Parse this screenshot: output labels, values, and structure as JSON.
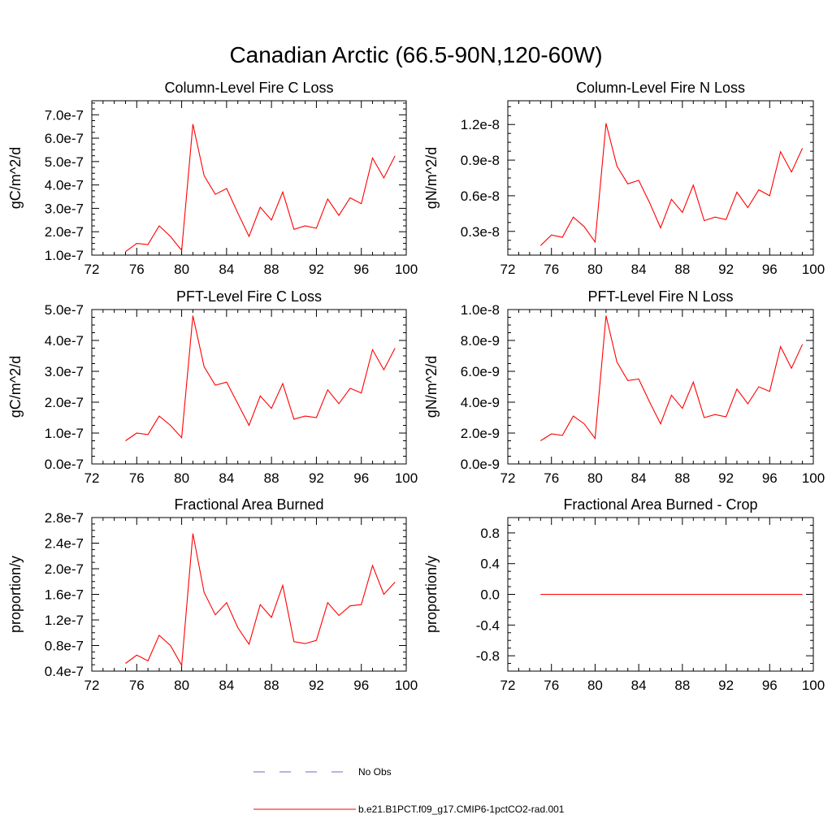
{
  "figure": {
    "title": "Canadian Arctic (66.5-90N,120-60W)"
  },
  "chart_data": [
    {
      "type": "line",
      "title": "Column-Level Fire C Loss",
      "ylabel": "gC/m^2/d",
      "xlim": [
        72,
        100
      ],
      "ylim": [
        1e-07,
        7.6e-07
      ],
      "xticks": [
        72,
        76,
        80,
        84,
        88,
        92,
        96,
        100
      ],
      "xticklabels": [
        "72",
        "76",
        "80",
        "84",
        "88",
        "92",
        "96",
        "100"
      ],
      "yticks": [
        1e-07,
        2e-07,
        3e-07,
        4e-07,
        5e-07,
        6e-07,
        7e-07
      ],
      "yticklabels": [
        "1.0e-7",
        "2.0e-7",
        "3.0e-7",
        "4.0e-7",
        "5.0e-7",
        "6.0e-7",
        "7.0e-7"
      ],
      "x": [
        75,
        76,
        77,
        78,
        79,
        80,
        81,
        82,
        83,
        84,
        85,
        86,
        87,
        88,
        89,
        90,
        91,
        92,
        93,
        94,
        95,
        96,
        97,
        98,
        99
      ],
      "series": [
        {
          "name": "b.e21.B1PCT.f09_g17.CMIP6-1pctCO2-rad.001",
          "color": "#ff0000",
          "values": [
            1.15e-07,
            1.5e-07,
            1.45e-07,
            2.25e-07,
            1.8e-07,
            1.2e-07,
            6.6e-07,
            4.4e-07,
            3.6e-07,
            3.85e-07,
            2.8e-07,
            1.8e-07,
            3.05e-07,
            2.5e-07,
            3.7e-07,
            2.1e-07,
            2.25e-07,
            2.15e-07,
            3.4e-07,
            2.7e-07,
            3.45e-07,
            3.2e-07,
            5.15e-07,
            4.3e-07,
            5.25e-07
          ]
        }
      ]
    },
    {
      "type": "line",
      "title": "Column-Level Fire N Loss",
      "ylabel": "gN/m^2/d",
      "xlim": [
        72,
        100
      ],
      "ylim": [
        1e-09,
        1.4e-08
      ],
      "xticks": [
        72,
        76,
        80,
        84,
        88,
        92,
        96,
        100
      ],
      "xticklabels": [
        "72",
        "76",
        "80",
        "84",
        "88",
        "92",
        "96",
        "100"
      ],
      "yticks": [
        3e-09,
        6e-09,
        9e-09,
        1.2e-08
      ],
      "yticklabels": [
        "0.3e-8",
        "0.6e-8",
        "0.9e-8",
        "1.2e-8"
      ],
      "x": [
        75,
        76,
        77,
        78,
        79,
        80,
        81,
        82,
        83,
        84,
        85,
        86,
        87,
        88,
        89,
        90,
        91,
        92,
        93,
        94,
        95,
        96,
        97,
        98,
        99
      ],
      "series": [
        {
          "name": "b.e21.B1PCT.f09_g17.CMIP6-1pctCO2-rad.001",
          "color": "#ff0000",
          "values": [
            1.8e-09,
            2.7e-09,
            2.5e-09,
            4.2e-09,
            3.4e-09,
            2.1e-09,
            1.21e-08,
            8.5e-09,
            7e-09,
            7.3e-09,
            5.4e-09,
            3.3e-09,
            5.7e-09,
            4.6e-09,
            6.9e-09,
            3.9e-09,
            4.2e-09,
            4e-09,
            6.3e-09,
            5e-09,
            6.5e-09,
            6e-09,
            9.7e-09,
            8e-09,
            1e-08
          ]
        }
      ]
    },
    {
      "type": "line",
      "title": "PFT-Level Fire C Loss",
      "ylabel": "gC/m^2/d",
      "xlim": [
        72,
        100
      ],
      "ylim": [
        0.0,
        5e-07
      ],
      "xticks": [
        72,
        76,
        80,
        84,
        88,
        92,
        96,
        100
      ],
      "xticklabels": [
        "72",
        "76",
        "80",
        "84",
        "88",
        "92",
        "96",
        "100"
      ],
      "yticks": [
        0.0,
        1e-07,
        2e-07,
        3e-07,
        4e-07,
        5e-07
      ],
      "yticklabels": [
        "0.0e-7",
        "1.0e-7",
        "2.0e-7",
        "3.0e-7",
        "4.0e-7",
        "5.0e-7"
      ],
      "x": [
        75,
        76,
        77,
        78,
        79,
        80,
        81,
        82,
        83,
        84,
        85,
        86,
        87,
        88,
        89,
        90,
        91,
        92,
        93,
        94,
        95,
        96,
        97,
        98,
        99
      ],
      "series": [
        {
          "name": "b.e21.B1PCT.f09_g17.CMIP6-1pctCO2-rad.001",
          "color": "#ff0000",
          "values": [
            7.5e-08,
            1e-07,
            9.5e-08,
            1.55e-07,
            1.25e-07,
            8.5e-08,
            4.8e-07,
            3.15e-07,
            2.55e-07,
            2.65e-07,
            1.95e-07,
            1.25e-07,
            2.2e-07,
            1.8e-07,
            2.6e-07,
            1.45e-07,
            1.55e-07,
            1.5e-07,
            2.4e-07,
            1.95e-07,
            2.45e-07,
            2.3e-07,
            3.7e-07,
            3.05e-07,
            3.75e-07
          ]
        }
      ]
    },
    {
      "type": "line",
      "title": "PFT-Level Fire N Loss",
      "ylabel": "gN/m^2/d",
      "xlim": [
        72,
        100
      ],
      "ylim": [
        0.0,
        1e-08
      ],
      "xticks": [
        72,
        76,
        80,
        84,
        88,
        92,
        96,
        100
      ],
      "xticklabels": [
        "72",
        "76",
        "80",
        "84",
        "88",
        "92",
        "96",
        "100"
      ],
      "yticks": [
        0.0,
        2e-09,
        4e-09,
        6e-09,
        8e-09,
        1e-08
      ],
      "yticklabels": [
        "0.0e-9",
        "2.0e-9",
        "4.0e-9",
        "6.0e-9",
        "8.0e-9",
        "1.0e-8"
      ],
      "x": [
        75,
        76,
        77,
        78,
        79,
        80,
        81,
        82,
        83,
        84,
        85,
        86,
        87,
        88,
        89,
        90,
        91,
        92,
        93,
        94,
        95,
        96,
        97,
        98,
        99
      ],
      "series": [
        {
          "name": "b.e21.B1PCT.f09_g17.CMIP6-1pctCO2-rad.001",
          "color": "#ff0000",
          "values": [
            1.5e-09,
            1.95e-09,
            1.85e-09,
            3.1e-09,
            2.6e-09,
            1.65e-09,
            9.6e-09,
            6.6e-09,
            5.4e-09,
            5.5e-09,
            4e-09,
            2.6e-09,
            4.45e-09,
            3.6e-09,
            5.3e-09,
            3e-09,
            3.2e-09,
            3.05e-09,
            4.85e-09,
            3.9e-09,
            5e-09,
            4.7e-09,
            7.6e-09,
            6.2e-09,
            7.75e-09
          ]
        }
      ]
    },
    {
      "type": "line",
      "title": "Fractional Area Burned",
      "ylabel": "proportion/y",
      "xlim": [
        72,
        100
      ],
      "ylim": [
        4e-08,
        2.8e-07
      ],
      "xticks": [
        72,
        76,
        80,
        84,
        88,
        92,
        96,
        100
      ],
      "xticklabels": [
        "72",
        "76",
        "80",
        "84",
        "88",
        "92",
        "96",
        "100"
      ],
      "yticks": [
        4e-08,
        8e-08,
        1.2e-07,
        1.6e-07,
        2e-07,
        2.4e-07,
        2.8e-07
      ],
      "yticklabels": [
        "0.4e-7",
        "0.8e-7",
        "1.2e-7",
        "1.6e-7",
        "2.0e-7",
        "2.4e-7",
        "2.8e-7"
      ],
      "x": [
        75,
        76,
        77,
        78,
        79,
        80,
        81,
        82,
        83,
        84,
        85,
        86,
        87,
        88,
        89,
        90,
        91,
        92,
        93,
        94,
        95,
        96,
        97,
        98,
        99
      ],
      "series": [
        {
          "name": "b.e21.B1PCT.f09_g17.CMIP6-1pctCO2-rad.001",
          "color": "#ff0000",
          "values": [
            5.2e-08,
            6.5e-08,
            5.6e-08,
            9.6e-08,
            8e-08,
            4.9e-08,
            2.55e-07,
            1.63e-07,
            1.28e-07,
            1.47e-07,
            1.08e-07,
            8.2e-08,
            1.44e-07,
            1.24e-07,
            1.74e-07,
            8.6e-08,
            8.3e-08,
            8.8e-08,
            1.47e-07,
            1.27e-07,
            1.42e-07,
            1.44e-07,
            2.05e-07,
            1.6e-07,
            1.79e-07
          ]
        }
      ]
    },
    {
      "type": "line",
      "title": "Fractional Area Burned - Crop",
      "ylabel": "proportion/y",
      "xlim": [
        72,
        100
      ],
      "ylim": [
        -1.0,
        1.0
      ],
      "xticks": [
        72,
        76,
        80,
        84,
        88,
        92,
        96,
        100
      ],
      "xticklabels": [
        "72",
        "76",
        "80",
        "84",
        "88",
        "92",
        "96",
        "100"
      ],
      "yticks": [
        -0.8,
        -0.4,
        0.0,
        0.4,
        0.8
      ],
      "yticklabels": [
        "-0.8",
        "-0.4",
        "0.0",
        "0.4",
        "0.8"
      ],
      "x": [
        75,
        76,
        77,
        78,
        79,
        80,
        81,
        82,
        83,
        84,
        85,
        86,
        87,
        88,
        89,
        90,
        91,
        92,
        93,
        94,
        95,
        96,
        97,
        98,
        99
      ],
      "series": [
        {
          "name": "b.e21.B1PCT.f09_g17.CMIP6-1pctCO2-rad.001",
          "color": "#ff0000",
          "values": [
            0,
            0,
            0,
            0,
            0,
            0,
            0,
            0,
            0,
            0,
            0,
            0,
            0,
            0,
            0,
            0,
            0,
            0,
            0,
            0,
            0,
            0,
            0,
            0,
            0
          ]
        }
      ]
    }
  ],
  "legend": {
    "placement": "bottom-center",
    "entries": [
      {
        "label": "No Obs",
        "color": "#6a6acd",
        "style": "dashed"
      },
      {
        "label": "b.e21.B1PCT.f09_g17.CMIP6-1pctCO2-rad.001",
        "color": "#ff0000",
        "style": "solid"
      }
    ]
  }
}
